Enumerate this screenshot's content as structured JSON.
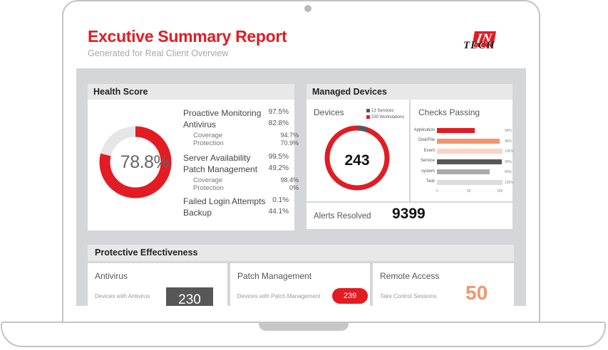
{
  "report": {
    "title": "Excutive Summary Report",
    "subtitle": "Generated for Real Client Overview",
    "logo": {
      "big": "IN",
      "small": "TECH"
    },
    "colors": {
      "accent": "#e31b23",
      "orange": "#f2956f",
      "dark": "#575757",
      "track": "#e6e6e6"
    }
  },
  "health": {
    "heading": "Health Score",
    "score": "78.8%",
    "score_fraction": 0.788,
    "rows": [
      {
        "label": "Proactive Monitoring",
        "value": "97.5%",
        "sub": false
      },
      {
        "label": "Antivirus",
        "value": "82.8%",
        "sub": false
      },
      {
        "label": "Coverage",
        "value": "94.7%",
        "sub": true
      },
      {
        "label": "Protection",
        "value": "70.9%",
        "sub": true
      },
      {
        "label": "Server Availability",
        "value": "99.5%",
        "sub": false
      },
      {
        "label": "Patch Management",
        "value": "49.2%",
        "sub": false
      },
      {
        "label": "Coverage",
        "value": "98.4%",
        "sub": true
      },
      {
        "label": "Protection",
        "value": "0%",
        "sub": true
      },
      {
        "label": "Failed Login Attempts",
        "value": "0.1%",
        "sub": false
      },
      {
        "label": "Backup",
        "value": "44.1%",
        "sub": false
      }
    ]
  },
  "managed": {
    "heading": "Managed Devices",
    "devices_label": "Devices",
    "total": "243",
    "legend": [
      {
        "label": "13 Services",
        "count": 13,
        "color": "#575757"
      },
      {
        "label": "230 Workstations",
        "count": 230,
        "color": "#e31b23"
      }
    ],
    "checks_label": "Checks Passing",
    "checks": [
      {
        "label": "Application",
        "value": 58,
        "value_label": "58%",
        "color": "#e31b23"
      },
      {
        "label": "Disk/File",
        "value": 96,
        "value_label": "96%",
        "color": "#f2956f"
      },
      {
        "label": "Event",
        "value": 100,
        "value_label": "100%",
        "color": "#fbd3c2"
      },
      {
        "label": "Service",
        "value": 99,
        "value_label": "99%",
        "color": "#575757"
      },
      {
        "label": "system",
        "value": 80,
        "value_label": "80%",
        "color": "#aaaaaa"
      },
      {
        "label": "Task",
        "value": 100,
        "value_label": "100%",
        "color": "#dddddd"
      }
    ],
    "axis_ticks": [
      "0",
      "50",
      "100"
    ],
    "alerts_label": "Alerts Resolved",
    "alerts_value": "9399"
  },
  "protective": {
    "heading": "Protective Effectiveness",
    "antivirus": {
      "title": "Antivirus",
      "desc": "Devices with Antivirus",
      "value": "230"
    },
    "patch": {
      "title": "Patch Management",
      "desc": "Devices with Patch Management",
      "value": "239"
    },
    "remote": {
      "title": "Remote Access",
      "desc": "Take Control Sessions",
      "value": "50"
    }
  }
}
